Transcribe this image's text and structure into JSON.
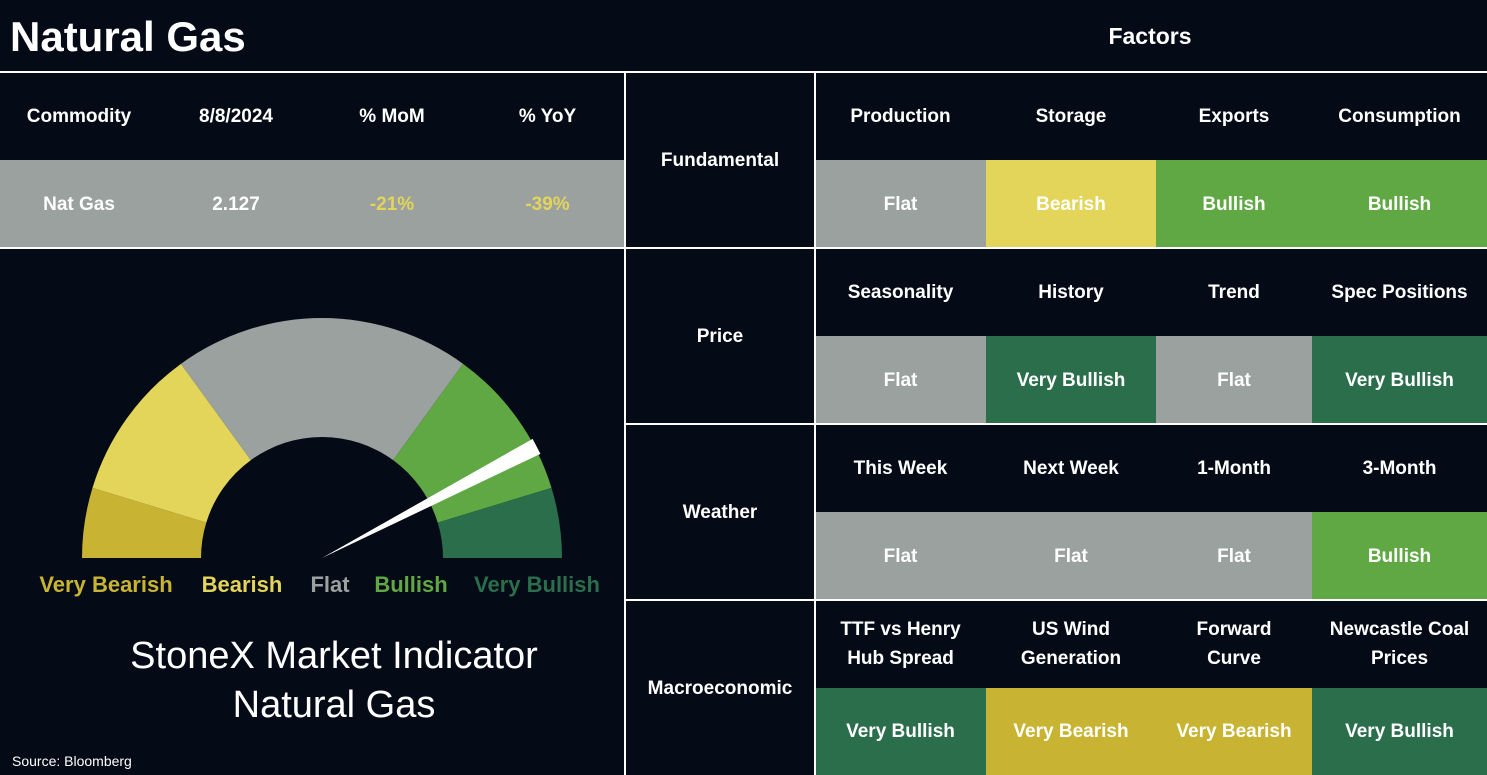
{
  "header": {
    "title": "Natural Gas",
    "factors_title": "Factors"
  },
  "summary": {
    "columns": [
      "Commodity",
      "8/8/2024",
      "% MoM",
      "% YoY"
    ],
    "row": [
      "Nat Gas",
      "2.127",
      "-21%",
      "-39%"
    ]
  },
  "gauge": {
    "legend": [
      {
        "label": "Very Bearish",
        "color": "#c8b432"
      },
      {
        "label": "Bearish",
        "color": "#e3d55a"
      },
      {
        "label": "Flat",
        "color": "#9aa19f"
      },
      {
        "label": "Bullish",
        "color": "#5fa843"
      },
      {
        "label": "Very Bullish",
        "color": "#2a6e4c"
      }
    ],
    "caption": [
      "StoneX Market Indicator",
      "Natural Gas"
    ]
  },
  "source": "Source: Bloomberg",
  "factors": [
    {
      "name": "Fundamental",
      "headers": [
        "Production",
        "Storage",
        "Exports",
        "Consumption"
      ],
      "values": [
        "Flat",
        "Bearish",
        "Bullish",
        "Bullish"
      ]
    },
    {
      "name": "Price",
      "headers": [
        "Seasonality",
        "History",
        "Trend",
        "Spec Positions"
      ],
      "values": [
        "Flat",
        "Very Bullish",
        "Flat",
        "Very Bullish"
      ]
    },
    {
      "name": "Weather",
      "headers": [
        "This Week",
        "Next Week",
        "1-Month",
        "3-Month"
      ],
      "values": [
        "Flat",
        "Flat",
        "Flat",
        "Bullish"
      ]
    },
    {
      "name": "Macroeconomic",
      "headers": [
        "TTF vs Henry\nHub Spread",
        "US Wind\nGeneration",
        "Forward\nCurve",
        "Newcastle Coal\nPrices"
      ],
      "values": [
        "Very Bullish",
        "Very Bearish",
        "Very Bearish",
        "Very Bullish"
      ]
    }
  ]
}
